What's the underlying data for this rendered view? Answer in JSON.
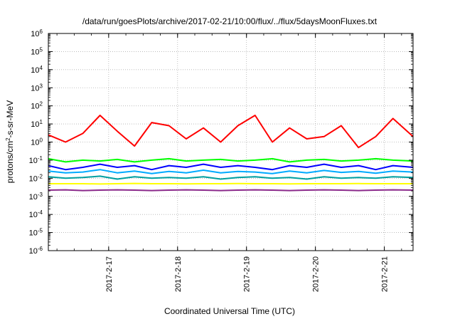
{
  "chart_data": {
    "type": "line",
    "title": "/data/run/goesPlots/archive/2017-02-21/10:00/flux/../flux/5daysMoonFluxes.txt",
    "xlabel": "Coordinated Universal Time (UTC)",
    "ylabel_parts": [
      "protons/cm",
      "2",
      "-s-sr-MeV"
    ],
    "yscale": "log",
    "ylim": [
      1e-06,
      1000000.0
    ],
    "xlim": [
      "2017-02-16 03:00",
      "2017-02-21 10:00"
    ],
    "grid": true,
    "legend": "none",
    "y_ticks": [
      {
        "base": "10",
        "exp": "-6"
      },
      {
        "base": "10",
        "exp": "-5"
      },
      {
        "base": "10",
        "exp": "-4"
      },
      {
        "base": "10",
        "exp": "-3"
      },
      {
        "base": "10",
        "exp": "-2"
      },
      {
        "base": "10",
        "exp": "-1"
      },
      {
        "base": "10",
        "exp": "0"
      },
      {
        "base": "10",
        "exp": "1"
      },
      {
        "base": "10",
        "exp": "2"
      },
      {
        "base": "10",
        "exp": "3"
      },
      {
        "base": "10",
        "exp": "4"
      },
      {
        "base": "10",
        "exp": "5"
      },
      {
        "base": "10",
        "exp": "6"
      }
    ],
    "x_ticks": [
      "2017-2-17",
      "2017-2-18",
      "2017-2-19",
      "2017-2-20",
      "2017-2-21"
    ],
    "x": [
      "2017-02-16 03:00",
      "2017-02-16 09:00",
      "2017-02-16 15:00",
      "2017-02-16 21:00",
      "2017-02-17 03:00",
      "2017-02-17 09:00",
      "2017-02-17 15:00",
      "2017-02-17 21:00",
      "2017-02-18 03:00",
      "2017-02-18 09:00",
      "2017-02-18 15:00",
      "2017-02-18 21:00",
      "2017-02-19 03:00",
      "2017-02-19 09:00",
      "2017-02-19 15:00",
      "2017-02-19 21:00",
      "2017-02-20 03:00",
      "2017-02-20 09:00",
      "2017-02-20 15:00",
      "2017-02-20 21:00",
      "2017-02-21 03:00",
      "2017-02-21 10:00"
    ],
    "series": [
      {
        "color": "#ff0000",
        "values": [
          2.5,
          1.0,
          3.0,
          30,
          4.0,
          0.6,
          12,
          8.0,
          1.5,
          6.0,
          1.0,
          8.0,
          30,
          1.0,
          6.0,
          1.5,
          2.0,
          8.0,
          0.5,
          2.0,
          20,
          2.0
        ]
      },
      {
        "color": "#00ff00",
        "values": [
          0.12,
          0.08,
          0.1,
          0.09,
          0.11,
          0.08,
          0.1,
          0.12,
          0.09,
          0.1,
          0.11,
          0.09,
          0.1,
          0.12,
          0.08,
          0.1,
          0.11,
          0.09,
          0.1,
          0.12,
          0.1,
          0.09
        ]
      },
      {
        "color": "#0000ff",
        "values": [
          0.05,
          0.03,
          0.04,
          0.06,
          0.04,
          0.05,
          0.03,
          0.05,
          0.04,
          0.06,
          0.04,
          0.05,
          0.04,
          0.03,
          0.05,
          0.04,
          0.06,
          0.04,
          0.05,
          0.03,
          0.05,
          0.04
        ]
      },
      {
        "color": "#00aaff",
        "values": [
          0.025,
          0.02,
          0.022,
          0.03,
          0.02,
          0.025,
          0.018,
          0.024,
          0.02,
          0.028,
          0.02,
          0.024,
          0.022,
          0.018,
          0.025,
          0.02,
          0.027,
          0.021,
          0.024,
          0.019,
          0.025,
          0.022
        ]
      },
      {
        "color": "#00a0a0",
        "values": [
          0.012,
          0.01,
          0.011,
          0.013,
          0.009,
          0.012,
          0.01,
          0.011,
          0.01,
          0.012,
          0.009,
          0.011,
          0.012,
          0.01,
          0.011,
          0.009,
          0.012,
          0.01,
          0.011,
          0.01,
          0.012,
          0.011
        ]
      },
      {
        "color": "#ffff00",
        "values": [
          0.005,
          0.005,
          0.005,
          0.0048,
          0.005,
          0.0052,
          0.005,
          0.005,
          0.0049,
          0.005,
          0.005,
          0.0051,
          0.005,
          0.005,
          0.0049,
          0.005,
          0.005,
          0.005,
          0.0051,
          0.005,
          0.005,
          0.005
        ]
      },
      {
        "color": "#8b2a8b",
        "values": [
          0.0022,
          0.0023,
          0.0021,
          0.0022,
          0.0023,
          0.0022,
          0.0021,
          0.0022,
          0.0023,
          0.0022,
          0.0021,
          0.0022,
          0.0023,
          0.0022,
          0.0021,
          0.0022,
          0.0023,
          0.0022,
          0.0021,
          0.0022,
          0.0023,
          0.0022
        ]
      }
    ]
  }
}
